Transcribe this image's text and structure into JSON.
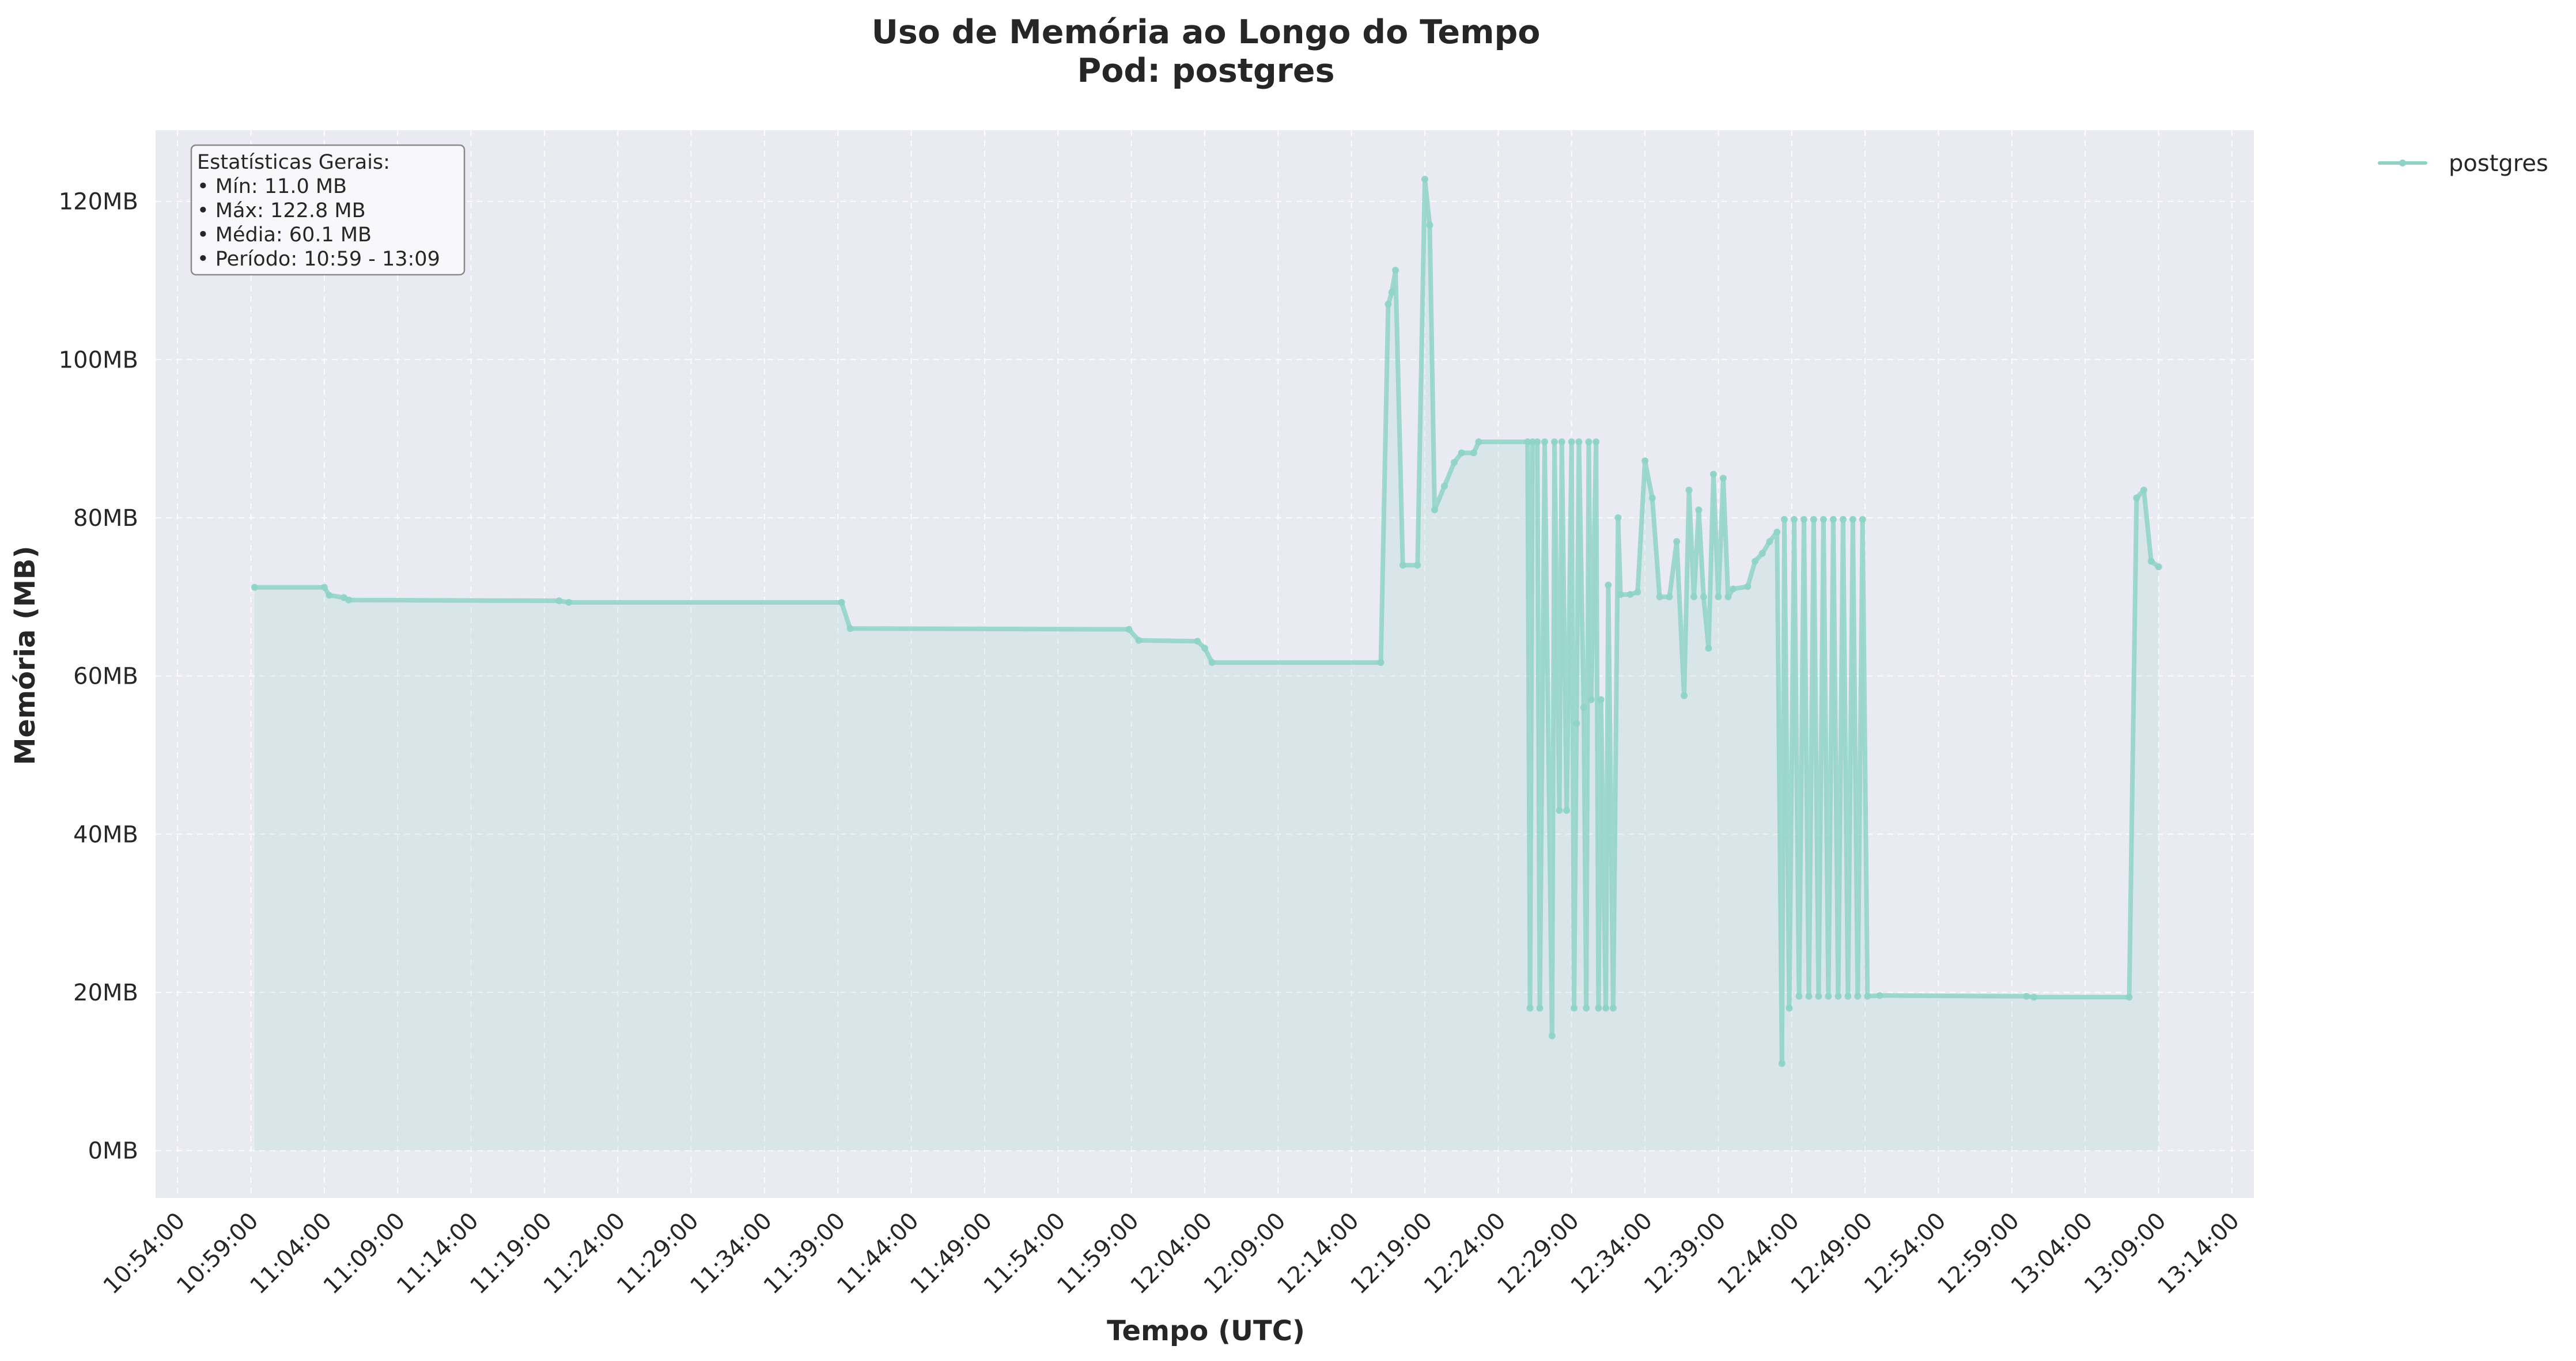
{
  "chart_data": {
    "type": "area",
    "title": "Uso de Memória ao Longo do Tempo",
    "subtitle": "Pod: postgres",
    "xlabel": "Tempo (UTC)",
    "ylabel": "Memória (MB)",
    "ylim": [
      -6,
      129
    ],
    "xlim": [
      "10:52:30",
      "13:15:30"
    ],
    "y_ticks": [
      0,
      20,
      40,
      60,
      80,
      100,
      120
    ],
    "y_tick_labels": [
      "0MB",
      "20MB",
      "40MB",
      "60MB",
      "80MB",
      "100MB",
      "120MB"
    ],
    "x_ticks": [
      "10:54:00",
      "10:59:00",
      "11:04:00",
      "11:09:00",
      "11:14:00",
      "11:19:00",
      "11:24:00",
      "11:29:00",
      "11:34:00",
      "11:39:00",
      "11:44:00",
      "11:49:00",
      "11:54:00",
      "11:59:00",
      "12:04:00",
      "12:09:00",
      "12:14:00",
      "12:19:00",
      "12:24:00",
      "12:29:00",
      "12:34:00",
      "12:39:00",
      "12:44:00",
      "12:49:00",
      "12:54:00",
      "12:59:00",
      "13:04:00",
      "13:09:00",
      "13:14:00"
    ],
    "grid": true,
    "legend_position": "outside-top-right",
    "series": [
      {
        "name": "postgres",
        "color": "#8fd3c7",
        "points": [
          [
            "10:59:15",
            71.2
          ],
          [
            "11:04:00",
            71.2
          ],
          [
            "11:04:20",
            70.2
          ],
          [
            "11:05:20",
            69.9
          ],
          [
            "11:05:40",
            69.6
          ],
          [
            "11:20:00",
            69.5
          ],
          [
            "11:20:40",
            69.3
          ],
          [
            "11:39:15",
            69.3
          ],
          [
            "11:39:50",
            66.0
          ],
          [
            "11:58:50",
            65.9
          ],
          [
            "11:59:30",
            64.5
          ],
          [
            "12:03:30",
            64.4
          ],
          [
            "12:04:00",
            63.5
          ],
          [
            "12:04:30",
            61.7
          ],
          [
            "12:16:00",
            61.7
          ],
          [
            "12:16:30",
            107.0
          ],
          [
            "12:16:45",
            108.5
          ],
          [
            "12:17:00",
            111.3
          ],
          [
            "12:17:30",
            74.0
          ],
          [
            "12:18:30",
            74.0
          ],
          [
            "12:19:00",
            122.8
          ],
          [
            "12:19:20",
            117.0
          ],
          [
            "12:19:40",
            81.0
          ],
          [
            "12:20:20",
            84.0
          ],
          [
            "12:21:00",
            87.0
          ],
          [
            "12:21:30",
            88.2
          ],
          [
            "12:22:20",
            88.2
          ],
          [
            "12:22:40",
            89.6
          ],
          [
            "12:26:00",
            89.6
          ],
          [
            "12:26:10",
            18.0
          ],
          [
            "12:26:20",
            89.6
          ],
          [
            "12:26:40",
            89.6
          ],
          [
            "12:26:50",
            18.0
          ],
          [
            "12:27:10",
            89.6
          ],
          [
            "12:27:40",
            14.5
          ],
          [
            "12:27:50",
            89.6
          ],
          [
            "12:28:10",
            43.0
          ],
          [
            "12:28:20",
            89.6
          ],
          [
            "12:28:40",
            43.0
          ],
          [
            "12:29:00",
            89.6
          ],
          [
            "12:29:10",
            18.0
          ],
          [
            "12:29:20",
            54.0
          ],
          [
            "12:29:30",
            89.6
          ],
          [
            "12:29:50",
            56.0
          ],
          [
            "12:30:00",
            18.0
          ],
          [
            "12:30:10",
            89.6
          ],
          [
            "12:30:20",
            57.0
          ],
          [
            "12:30:40",
            89.6
          ],
          [
            "12:30:50",
            18.0
          ],
          [
            "12:31:00",
            57.0
          ],
          [
            "12:31:20",
            18.0
          ],
          [
            "12:31:30",
            71.5
          ],
          [
            "12:31:50",
            18.0
          ],
          [
            "12:32:10",
            80.0
          ],
          [
            "12:32:20",
            70.3
          ],
          [
            "12:33:00",
            70.3
          ],
          [
            "12:33:30",
            70.6
          ],
          [
            "12:34:00",
            87.2
          ],
          [
            "12:34:30",
            82.5
          ],
          [
            "12:35:00",
            70.0
          ],
          [
            "12:35:40",
            70.0
          ],
          [
            "12:36:10",
            77.0
          ],
          [
            "12:36:40",
            57.5
          ],
          [
            "12:37:00",
            83.5
          ],
          [
            "12:37:20",
            70.0
          ],
          [
            "12:37:40",
            81.0
          ],
          [
            "12:38:00",
            70.0
          ],
          [
            "12:38:20",
            63.5
          ],
          [
            "12:38:40",
            85.5
          ],
          [
            "12:39:00",
            70.0
          ],
          [
            "12:39:20",
            85.0
          ],
          [
            "12:39:40",
            70.0
          ],
          [
            "12:40:00",
            71.0
          ],
          [
            "12:41:00",
            71.3
          ],
          [
            "12:41:30",
            74.5
          ],
          [
            "12:42:00",
            75.5
          ],
          [
            "12:42:30",
            77.0
          ],
          [
            "12:43:00",
            78.2
          ],
          [
            "12:43:20",
            11.0
          ],
          [
            "12:43:30",
            79.8
          ],
          [
            "12:43:50",
            18.0
          ],
          [
            "12:44:10",
            79.8
          ],
          [
            "12:44:30",
            19.5
          ],
          [
            "12:44:50",
            79.8
          ],
          [
            "12:45:10",
            19.5
          ],
          [
            "12:45:30",
            79.8
          ],
          [
            "12:45:50",
            19.5
          ],
          [
            "12:46:10",
            79.8
          ],
          [
            "12:46:30",
            19.5
          ],
          [
            "12:46:50",
            79.8
          ],
          [
            "12:47:10",
            19.5
          ],
          [
            "12:47:30",
            79.8
          ],
          [
            "12:47:50",
            19.5
          ],
          [
            "12:48:10",
            79.8
          ],
          [
            "12:48:30",
            19.5
          ],
          [
            "12:48:50",
            79.8
          ],
          [
            "12:49:10",
            19.5
          ],
          [
            "12:50:00",
            19.6
          ],
          [
            "13:00:00",
            19.5
          ],
          [
            "13:00:30",
            19.4
          ],
          [
            "13:07:00",
            19.4
          ],
          [
            "13:07:30",
            82.5
          ],
          [
            "13:08:00",
            83.5
          ],
          [
            "13:08:30",
            74.5
          ],
          [
            "13:09:00",
            73.8
          ]
        ]
      }
    ],
    "annotation": {
      "heading": "Estatísticas Gerais:",
      "lines": [
        "• Mín: 11.0 MB",
        "• Máx: 122.8 MB",
        "• Média: 60.1 MB",
        "• Período: 10:59 - 13:09"
      ]
    }
  }
}
